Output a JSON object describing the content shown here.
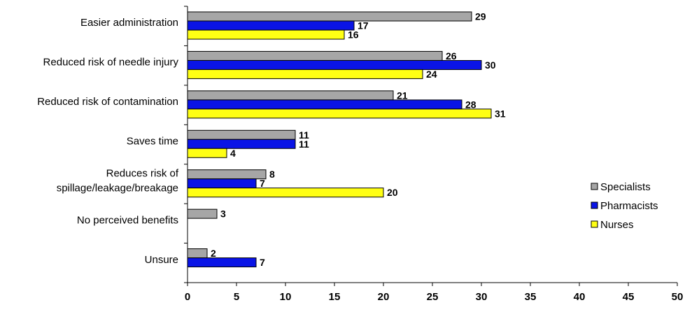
{
  "chart_data": {
    "type": "bar",
    "orientation": "horizontal",
    "categories": [
      "Easier administration",
      "Reduced risk of needle injury",
      "Reduced risk of contamination",
      "Saves time",
      "Reduces risk of spillage/leakage/breakage",
      "No perceived benefits",
      "Unsure"
    ],
    "category_lines": [
      [
        "Easier administration"
      ],
      [
        "Reduced risk of needle injury"
      ],
      [
        "Reduced risk of contamination"
      ],
      [
        "Saves time"
      ],
      [
        "Reduces risk of",
        "spillage/leakage/breakage"
      ],
      [
        "No perceived benefits"
      ],
      [
        "Unsure"
      ]
    ],
    "series": [
      {
        "name": "Specialists",
        "color": "#a6a6a6",
        "values": [
          29,
          26,
          21,
          11,
          8,
          3,
          2
        ]
      },
      {
        "name": "Pharmacists",
        "color": "#0a14e6",
        "values": [
          17,
          30,
          28,
          11,
          7,
          null,
          7
        ]
      },
      {
        "name": "Nurses",
        "color": "#ffff14",
        "values": [
          16,
          24,
          31,
          4,
          20,
          null,
          null
        ]
      }
    ],
    "xlim": [
      0,
      50
    ],
    "xticks": [
      0,
      5,
      10,
      15,
      20,
      25,
      30,
      35,
      40,
      45,
      50
    ],
    "legend": {
      "position": "right",
      "entries": [
        "Specialists",
        "Pharmacists",
        "Nurses"
      ]
    },
    "grid": false
  }
}
